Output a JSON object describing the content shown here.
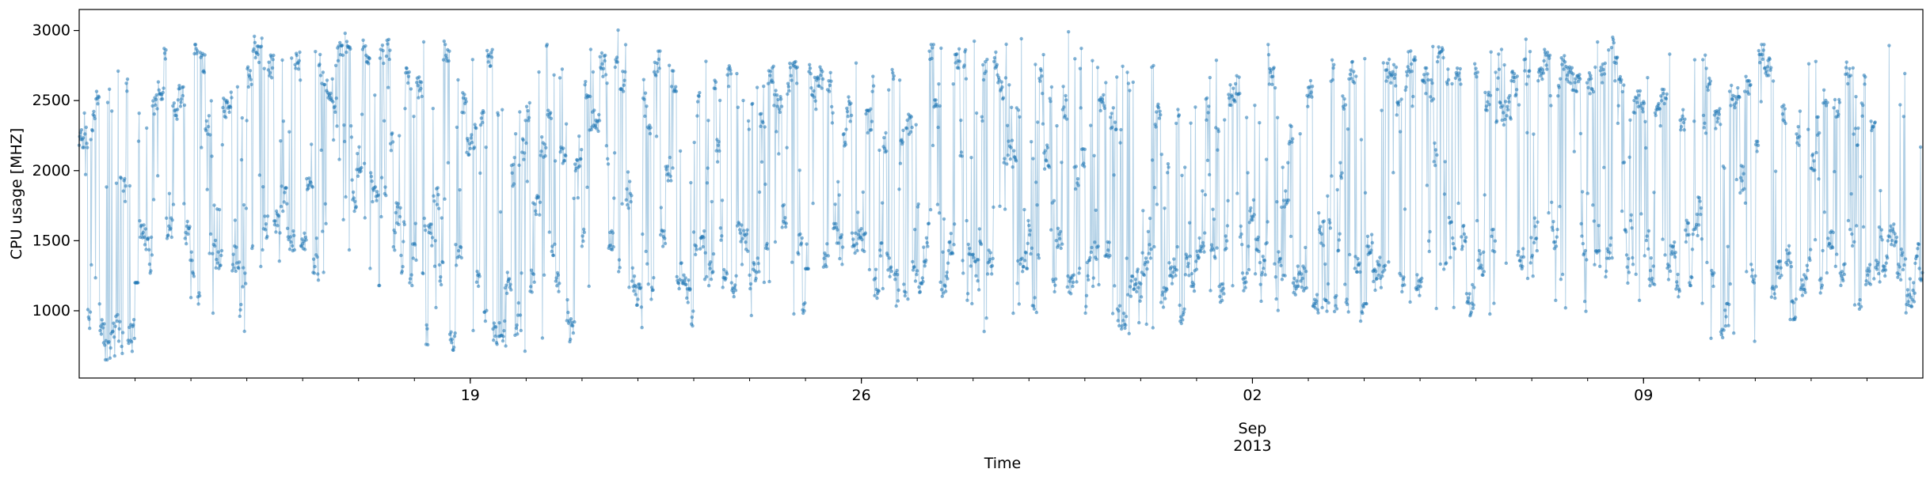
{
  "chart_data": {
    "type": "line",
    "markers": true,
    "xlabel": "Time",
    "ylabel": "CPU usage [MHZ]",
    "xlim": [
      "2013-08-12",
      "2013-09-14"
    ],
    "ylim": [
      520,
      3150
    ],
    "yticks": [
      1000,
      1500,
      2000,
      2500,
      3000
    ],
    "xticks": [
      {
        "date": "2013-08-19",
        "label": "19",
        "sublabel": ""
      },
      {
        "date": "2013-08-26",
        "label": "26",
        "sublabel": ""
      },
      {
        "date": "2013-09-02",
        "label": "02",
        "sublabel": "Sep\n2013"
      },
      {
        "date": "2013-09-09",
        "label": "09",
        "sublabel": ""
      }
    ],
    "minor_ticks": "daily",
    "grid": false,
    "legend": "none",
    "sample_interval": "5 min",
    "series": [
      {
        "color": "#1f77b4",
        "alpha": 0.45,
        "daily_profile": [
          {
            "date": "2013-08-12",
            "min": 650,
            "max": 2850,
            "mean": 1100
          },
          {
            "date": "2013-08-13",
            "min": 1200,
            "max": 2950,
            "mean": 1800
          },
          {
            "date": "2013-08-14",
            "min": 820,
            "max": 2900,
            "mean": 1750
          },
          {
            "date": "2013-08-15",
            "min": 1250,
            "max": 3020,
            "mean": 2300
          },
          {
            "date": "2013-08-16",
            "min": 1200,
            "max": 2980,
            "mean": 2250
          },
          {
            "date": "2013-08-17",
            "min": 1180,
            "max": 2950,
            "mean": 2400
          },
          {
            "date": "2013-08-18",
            "min": 680,
            "max": 2950,
            "mean": 1750
          },
          {
            "date": "2013-08-19",
            "min": 700,
            "max": 2900,
            "mean": 1550
          },
          {
            "date": "2013-08-20",
            "min": 750,
            "max": 2950,
            "mean": 1500
          },
          {
            "date": "2013-08-21",
            "min": 850,
            "max": 3010,
            "mean": 1900
          },
          {
            "date": "2013-08-22",
            "min": 800,
            "max": 2900,
            "mean": 1700
          },
          {
            "date": "2013-08-23",
            "min": 1100,
            "max": 2800,
            "mean": 1800
          },
          {
            "date": "2013-08-24",
            "min": 950,
            "max": 2800,
            "mean": 1750
          },
          {
            "date": "2013-08-25",
            "min": 1300,
            "max": 2800,
            "mean": 2000
          },
          {
            "date": "2013-08-26",
            "min": 1000,
            "max": 2750,
            "mean": 1700
          },
          {
            "date": "2013-08-27",
            "min": 1050,
            "max": 2900,
            "mean": 1650
          },
          {
            "date": "2013-08-28",
            "min": 800,
            "max": 2950,
            "mean": 1900
          },
          {
            "date": "2013-08-29",
            "min": 850,
            "max": 3000,
            "mean": 1900
          },
          {
            "date": "2013-08-30",
            "min": 820,
            "max": 2900,
            "mean": 1700
          },
          {
            "date": "2013-08-31",
            "min": 850,
            "max": 2750,
            "mean": 1600
          },
          {
            "date": "2013-09-01",
            "min": 1000,
            "max": 2850,
            "mean": 1800
          },
          {
            "date": "2013-09-02",
            "min": 1000,
            "max": 2900,
            "mean": 1750
          },
          {
            "date": "2013-09-03",
            "min": 800,
            "max": 2900,
            "mean": 1950
          },
          {
            "date": "2013-09-04",
            "min": 1050,
            "max": 2900,
            "mean": 1950
          },
          {
            "date": "2013-09-05",
            "min": 950,
            "max": 2950,
            "mean": 1950
          },
          {
            "date": "2013-09-06",
            "min": 900,
            "max": 2950,
            "mean": 1900
          },
          {
            "date": "2013-09-07",
            "min": 850,
            "max": 2900,
            "mean": 1950
          },
          {
            "date": "2013-09-08",
            "min": 1000,
            "max": 3000,
            "mean": 1900
          },
          {
            "date": "2013-09-09",
            "min": 1050,
            "max": 2950,
            "mean": 1850
          },
          {
            "date": "2013-09-10",
            "min": 750,
            "max": 2850,
            "mean": 1500
          },
          {
            "date": "2013-09-11",
            "min": 900,
            "max": 2900,
            "mean": 1750
          },
          {
            "date": "2013-09-12",
            "min": 950,
            "max": 2900,
            "mean": 1900
          },
          {
            "date": "2013-09-13",
            "min": 950,
            "max": 2950,
            "mean": 1900
          }
        ]
      }
    ]
  }
}
